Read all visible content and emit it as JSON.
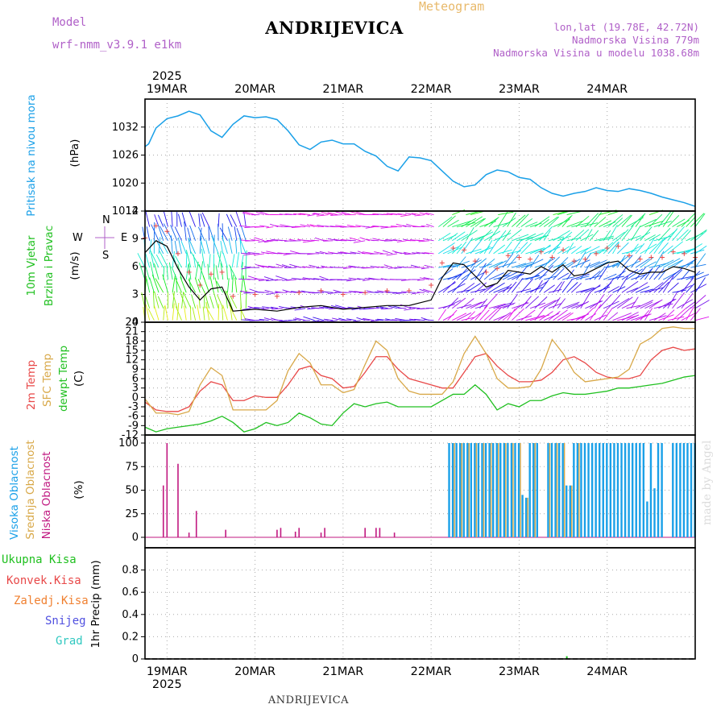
{
  "header": {
    "title": "ANDRIJEVICA",
    "subtitle": "Meteogram",
    "model_label": "Model",
    "model_value": "wrf-nmm_v3.9.1 e1km",
    "lonlat": "lon,lat (19.78E, 42.72N)",
    "altitude": "Nadmorska Visina 779m",
    "model_altitude": "Nadmorska Visina u modelu 1038.68m",
    "footer": "ANDRIJEVICA",
    "credit": "made by Angel"
  },
  "colors": {
    "pressure": "#1aa0e8",
    "temp2m": "#e84848",
    "sfc": "#d8a848",
    "dewpt": "#20c020",
    "high_cloud": "#1aa0e8",
    "mid_cloud": "#d8a848",
    "low_cloud": "#c01880"
  },
  "time_axis": {
    "day_labels": [
      "19MAR",
      "20MAR",
      "21MAR",
      "22MAR",
      "23MAR",
      "24MAR"
    ],
    "year": "2025",
    "start_hour_offset": 0
  },
  "chart_data": [
    {
      "type": "line",
      "name": "pressure",
      "ylabel": "Pritisak na nivou mora",
      "unit": "(hPa)",
      "ylim": [
        1014,
        1038
      ],
      "yticks": [
        "1014",
        "1020",
        "1026",
        "1032"
      ],
      "x_hours": [
        0,
        1,
        3,
        6,
        9,
        12,
        15,
        18,
        21,
        24,
        27,
        30,
        33,
        36,
        39,
        42,
        45,
        48,
        51,
        54,
        57,
        60,
        63,
        66,
        69,
        72,
        75,
        78,
        81,
        84,
        87,
        90,
        93,
        96,
        99,
        102,
        105,
        108,
        111,
        114,
        117,
        120,
        123,
        126,
        129,
        132,
        135,
        138,
        141,
        144,
        147,
        150
      ],
      "values": [
        1027.8,
        1028.4,
        1031.8,
        1033.8,
        1034.4,
        1035.4,
        1034.6,
        1031.2,
        1029.8,
        1032.6,
        1034.4,
        1034.0,
        1034.2,
        1033.6,
        1031.2,
        1028.2,
        1027.2,
        1028.8,
        1029.2,
        1028.4,
        1028.4,
        1026.8,
        1025.8,
        1023.6,
        1022.6,
        1025.6,
        1025.4,
        1024.8,
        1022.6,
        1020.4,
        1019.2,
        1019.6,
        1021.8,
        1022.8,
        1022.4,
        1021.2,
        1020.8,
        1019.0,
        1017.8,
        1017.2,
        1017.8,
        1018.2,
        1019.0,
        1018.4,
        1018.2,
        1018.8,
        1018.4,
        1017.8,
        1017.0,
        1016.4,
        1015.8,
        1015.0
      ]
    },
    {
      "type": "line",
      "name": "wind",
      "ylabel": "10m Vjetar",
      "ylabel2": "Brzina i Pravac",
      "unit": "(m/s)",
      "ylim": [
        0,
        12
      ],
      "yticks": [
        "0",
        "3",
        "6",
        "9",
        "12"
      ],
      "compass": {
        "n": "N",
        "s": "S",
        "e": "E",
        "w": "W"
      },
      "x_hours": [
        0,
        3,
        6,
        9,
        12,
        15,
        18,
        21,
        24,
        30,
        36,
        42,
        48,
        54,
        60,
        66,
        72,
        78,
        81,
        84,
        87,
        90,
        93,
        96,
        99,
        102,
        105,
        108,
        111,
        114,
        117,
        120,
        123,
        126,
        129,
        132,
        135,
        138,
        141,
        144,
        147,
        150
      ],
      "values": [
        7.5,
        8.8,
        8.2,
        5.8,
        3.8,
        2.4,
        3.6,
        3.8,
        1.2,
        1.4,
        1.2,
        1.6,
        1.8,
        1.4,
        1.6,
        1.8,
        1.8,
        2.4,
        4.8,
        6.4,
        6.2,
        5.0,
        3.8,
        4.2,
        5.6,
        5.4,
        5.2,
        6.0,
        5.4,
        6.2,
        5.0,
        5.2,
        5.8,
        6.4,
        6.6,
        5.6,
        5.2,
        5.4,
        5.4,
        6.0,
        5.8,
        5.4
      ]
    },
    {
      "type": "line",
      "name": "temperature",
      "ylabel": "2m Temp",
      "ylabel2": "SFC Temp",
      "ylabel3": "dewpt Temp",
      "unit": "(C)",
      "ylim": [
        -12,
        24
      ],
      "yticks": [
        "-12",
        "-9",
        "-6",
        "-3",
        "0",
        "3",
        "6",
        "9",
        "12",
        "15",
        "18",
        "21",
        "24"
      ],
      "x_hours": [
        0,
        3,
        6,
        9,
        12,
        15,
        18,
        21,
        24,
        27,
        30,
        33,
        36,
        39,
        42,
        45,
        48,
        51,
        54,
        57,
        60,
        63,
        66,
        69,
        72,
        75,
        78,
        81,
        84,
        87,
        90,
        93,
        96,
        99,
        102,
        105,
        108,
        111,
        114,
        117,
        120,
        123,
        126,
        129,
        132,
        135,
        138,
        141,
        144,
        147,
        150
      ],
      "series": [
        {
          "name": "2m Temp",
          "values": [
            -1.5,
            -4.0,
            -4.5,
            -4.5,
            -3.0,
            2.0,
            5.0,
            4.0,
            -1.0,
            -1.0,
            0.5,
            0.0,
            0.0,
            4.0,
            9.0,
            10.0,
            7.0,
            6.0,
            3.0,
            3.5,
            8.0,
            13.0,
            13.0,
            9.0,
            6.0,
            5.0,
            4.0,
            3.0,
            3.0,
            8.0,
            13.0,
            14.0,
            10.0,
            7.0,
            5.0,
            5.0,
            5.5,
            8.0,
            12.0,
            13.0,
            11.0,
            8.0,
            6.5,
            6.0,
            6.0,
            7.0,
            12.0,
            15.0,
            16.0,
            15.0,
            15.5
          ]
        },
        {
          "name": "SFC Temp",
          "values": [
            -0.5,
            -5.0,
            -5.0,
            -5.5,
            -4.5,
            4.0,
            9.5,
            7.0,
            -4.0,
            -4.0,
            -4.0,
            -4.0,
            -1.0,
            8.5,
            14.0,
            11.0,
            4.0,
            4.0,
            1.5,
            2.5,
            10.5,
            18.0,
            15.0,
            6.0,
            2.0,
            1.0,
            1.0,
            1.0,
            5.0,
            14.0,
            19.5,
            14.0,
            6.0,
            3.0,
            3.0,
            3.5,
            9.0,
            18.5,
            14.0,
            8.0,
            5.0,
            5.5,
            6.0,
            6.5,
            9.0,
            17.0,
            19.0,
            22.0,
            22.5,
            22.0,
            22.0
          ]
        },
        {
          "name": "dewpt Temp",
          "values": [
            -9.5,
            -11.0,
            -10.0,
            -9.5,
            -9.0,
            -8.5,
            -7.5,
            -6.0,
            -8.0,
            -11.0,
            -10.0,
            -8.0,
            -9.0,
            -8.0,
            -5.0,
            -6.5,
            -8.5,
            -9.0,
            -5.0,
            -2.0,
            -3.0,
            -2.0,
            -1.5,
            -3.0,
            -3.0,
            -3.0,
            -3.0,
            -1.0,
            1.0,
            1.0,
            4.0,
            1.0,
            -4.0,
            -2.0,
            -3.0,
            -1.0,
            -1.0,
            0.5,
            1.5,
            1.0,
            1.0,
            1.5,
            2.0,
            3.0,
            3.0,
            3.5,
            4.0,
            4.5,
            5.5,
            6.5,
            7.0
          ]
        }
      ]
    },
    {
      "type": "bar",
      "name": "clouds",
      "ylabel": "Visoka Oblacnost",
      "ylabel2": "Srednja Oblacnost",
      "ylabel3": "Niska Oblacnost",
      "unit": "(%)",
      "ylim": [
        0,
        100
      ],
      "yticks": [
        "0",
        "25",
        "50",
        "75",
        "100"
      ],
      "low_x_hours": [
        5,
        6,
        9,
        12,
        14,
        22,
        36,
        37,
        41,
        42,
        48,
        49,
        60,
        63,
        64,
        68
      ],
      "low_values": [
        55,
        100,
        78,
        5,
        28,
        8,
        8,
        10,
        6,
        10,
        5,
        10,
        10,
        10,
        10,
        5
      ],
      "high_start_hour": 83,
      "high_end_hour": 150,
      "high_gaps_hours": [
        108,
        109,
        142,
        143
      ],
      "high_low_values": {
        "103": 45,
        "104": 42,
        "115": 55,
        "116": 55,
        "137": 38,
        "139": 52
      }
    },
    {
      "type": "bar",
      "name": "precipitation",
      "legend": [
        "Ukupna Kisa",
        "Konvek.Kisa",
        "Zaledj.Kisa",
        "Snijeg",
        "Grad"
      ],
      "legend_colors": [
        "#20c020",
        "#e84848",
        "#f08030",
        "#5050e0",
        "#30c8c0"
      ],
      "unit": "1hr Precip (mm)",
      "ylim": [
        0,
        1
      ],
      "yticks": [
        "0",
        "0.2",
        "0.4",
        "0.6",
        "0.8"
      ],
      "x_hours": [
        115
      ],
      "values": [
        0.01
      ]
    }
  ]
}
